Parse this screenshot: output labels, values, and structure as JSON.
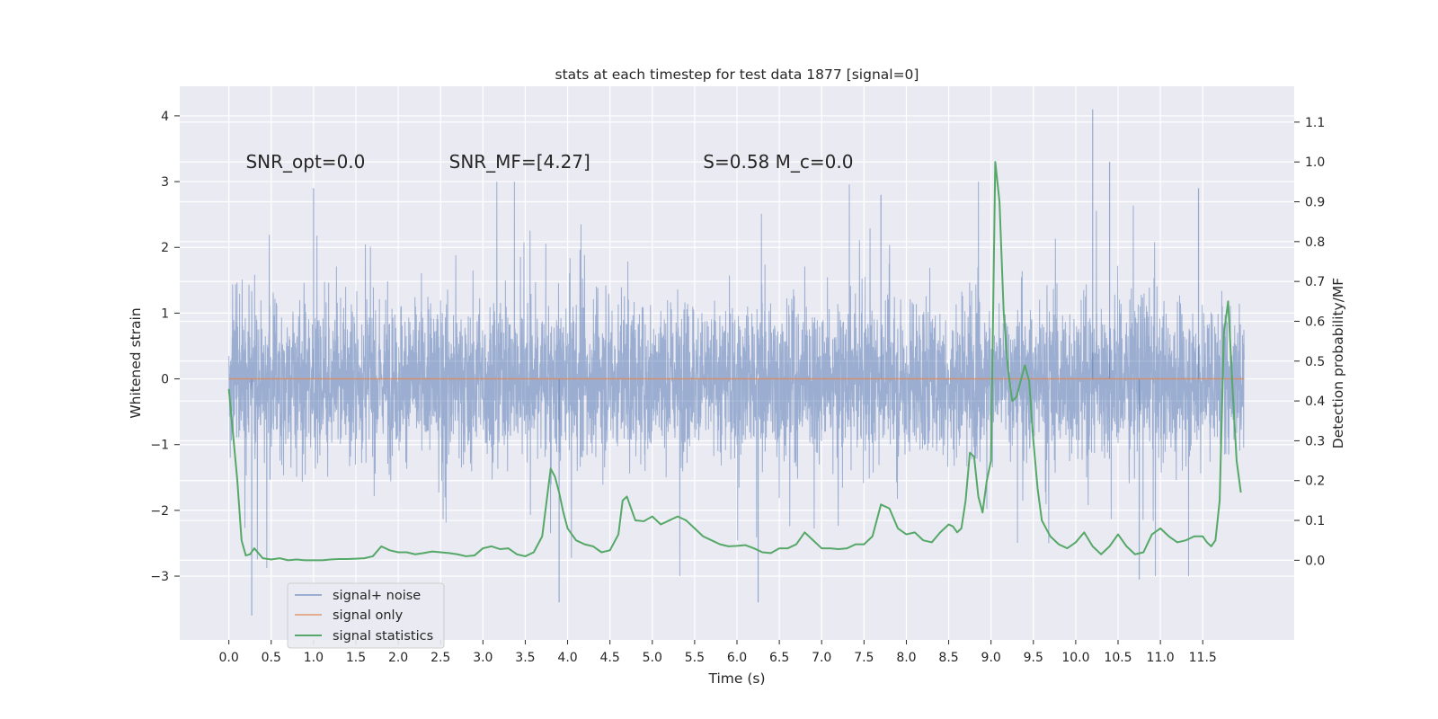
{
  "chart_data": {
    "type": "line",
    "title": "stats at each timestep for test data 1877 [signal=0]",
    "xlabel": "Time (s)",
    "ylabel": "Whitened strain",
    "y2label": "Detection probability/MF",
    "xlim": [
      -0.58,
      12.58
    ],
    "ylim": [
      -3.97,
      4.45
    ],
    "y2lim": [
      -0.2,
      1.19
    ],
    "xticks": [
      0.0,
      0.5,
      1.0,
      1.5,
      2.0,
      2.5,
      3.0,
      3.5,
      4.0,
      4.5,
      5.0,
      5.5,
      6.0,
      6.5,
      7.0,
      7.5,
      8.0,
      8.5,
      9.0,
      9.5,
      10.0,
      10.5,
      11.0,
      11.5
    ],
    "xtick_labels": [
      "0.0",
      "0.5",
      "1.0",
      "1.5",
      "2.0",
      "2.5",
      "3.0",
      "3.5",
      "4.0",
      "4.5",
      "5.0",
      "5.5",
      "6.0",
      "6.5",
      "7.0",
      "7.5",
      "8.0",
      "8.5",
      "9.0",
      "9.5",
      "10.0",
      "10.5",
      "11.0",
      "11.5"
    ],
    "yticks": [
      -3,
      -2,
      -1,
      0,
      1,
      2,
      3,
      4
    ],
    "ytick_labels": [
      "−3",
      "−2",
      "−1",
      "0",
      "1",
      "2",
      "3",
      "4"
    ],
    "y2ticks": [
      0.0,
      0.1,
      0.2,
      0.3,
      0.4,
      0.5,
      0.6,
      0.7,
      0.8,
      0.9,
      1.0,
      1.1
    ],
    "y2tick_labels": [
      "0.0",
      "0.1",
      "0.2",
      "0.3",
      "0.4",
      "0.5",
      "0.6",
      "0.7",
      "0.8",
      "0.9",
      "1.0",
      "1.1"
    ],
    "grid": true,
    "legend_position": "lower-left",
    "annotations": [
      {
        "text": "SNR_opt=0.0",
        "x": 0.2,
        "y": 3.3
      },
      {
        "text": "SNR_MF=[4.27]",
        "x": 2.6,
        "y": 3.3
      },
      {
        "text": "S=0.58   M_c=0.0",
        "x": 5.6,
        "y": 3.3
      }
    ],
    "series": [
      {
        "name": "signal+ noise",
        "color": "#4c72b0",
        "axis": "left",
        "style": "dense noise trace, approx ±1.5 band, peaks to ±3",
        "notable_points": [
          [
            0.27,
            -3.6
          ],
          [
            1.0,
            2.9
          ],
          [
            3.9,
            -3.4
          ],
          [
            6.25,
            -3.4
          ],
          [
            10.2,
            4.1
          ],
          [
            10.4,
            3.3
          ],
          [
            10.75,
            -3.05
          ],
          [
            7.7,
            2.8
          ],
          [
            11.45,
            2.9
          ]
        ]
      },
      {
        "name": "signal only",
        "color": "#dd8452",
        "axis": "left",
        "x": [
          0.0,
          11.99
        ],
        "values": [
          0.0,
          0.0
        ]
      },
      {
        "name": "signal statistics",
        "color": "#55a868",
        "axis": "right",
        "x": [
          0.0,
          0.1,
          0.15,
          0.2,
          0.25,
          0.3,
          0.4,
          0.5,
          0.6,
          0.7,
          0.8,
          0.9,
          1.0,
          1.1,
          1.2,
          1.3,
          1.4,
          1.5,
          1.6,
          1.7,
          1.8,
          1.9,
          2.0,
          2.1,
          2.2,
          2.3,
          2.4,
          2.5,
          2.6,
          2.7,
          2.8,
          2.9,
          3.0,
          3.1,
          3.2,
          3.3,
          3.4,
          3.5,
          3.6,
          3.7,
          3.8,
          3.85,
          3.9,
          3.95,
          4.0,
          4.1,
          4.2,
          4.3,
          4.4,
          4.5,
          4.6,
          4.65,
          4.7,
          4.8,
          4.9,
          5.0,
          5.1,
          5.2,
          5.3,
          5.4,
          5.5,
          5.6,
          5.7,
          5.8,
          5.9,
          6.0,
          6.1,
          6.2,
          6.3,
          6.4,
          6.5,
          6.6,
          6.7,
          6.8,
          6.9,
          7.0,
          7.1,
          7.2,
          7.3,
          7.4,
          7.5,
          7.6,
          7.7,
          7.8,
          7.9,
          8.0,
          8.1,
          8.2,
          8.3,
          8.4,
          8.5,
          8.55,
          8.6,
          8.65,
          8.7,
          8.75,
          8.8,
          8.85,
          8.9,
          8.95,
          9.0,
          9.05,
          9.1,
          9.15,
          9.2,
          9.25,
          9.3,
          9.35,
          9.4,
          9.45,
          9.5,
          9.55,
          9.6,
          9.7,
          9.8,
          9.9,
          10.0,
          10.1,
          10.2,
          10.3,
          10.4,
          10.5,
          10.6,
          10.7,
          10.8,
          10.9,
          11.0,
          11.1,
          11.2,
          11.3,
          11.4,
          11.5,
          11.55,
          11.6,
          11.65,
          11.7,
          11.75,
          11.8,
          11.85,
          11.9,
          11.95
        ],
        "values": [
          0.43,
          0.2,
          0.05,
          0.012,
          0.015,
          0.03,
          0.005,
          0.002,
          0.005,
          0.0,
          0.002,
          0.0,
          0.0,
          0.0,
          0.002,
          0.003,
          0.003,
          0.004,
          0.005,
          0.01,
          0.035,
          0.025,
          0.02,
          0.02,
          0.015,
          0.018,
          0.022,
          0.02,
          0.018,
          0.015,
          0.01,
          0.012,
          0.03,
          0.035,
          0.028,
          0.03,
          0.015,
          0.01,
          0.02,
          0.06,
          0.23,
          0.21,
          0.17,
          0.12,
          0.08,
          0.05,
          0.04,
          0.035,
          0.02,
          0.025,
          0.065,
          0.15,
          0.16,
          0.1,
          0.098,
          0.11,
          0.09,
          0.1,
          0.11,
          0.1,
          0.08,
          0.06,
          0.05,
          0.04,
          0.035,
          0.036,
          0.038,
          0.03,
          0.02,
          0.018,
          0.03,
          0.03,
          0.04,
          0.07,
          0.05,
          0.03,
          0.03,
          0.028,
          0.03,
          0.04,
          0.04,
          0.06,
          0.14,
          0.13,
          0.08,
          0.065,
          0.07,
          0.05,
          0.045,
          0.07,
          0.09,
          0.085,
          0.07,
          0.08,
          0.15,
          0.27,
          0.26,
          0.16,
          0.12,
          0.2,
          0.25,
          1.0,
          0.9,
          0.62,
          0.48,
          0.4,
          0.41,
          0.45,
          0.49,
          0.45,
          0.3,
          0.18,
          0.1,
          0.06,
          0.04,
          0.03,
          0.045,
          0.07,
          0.035,
          0.015,
          0.035,
          0.065,
          0.035,
          0.015,
          0.02,
          0.065,
          0.08,
          0.06,
          0.045,
          0.05,
          0.06,
          0.06,
          0.045,
          0.035,
          0.05,
          0.15,
          0.57,
          0.65,
          0.44,
          0.25,
          0.17
        ]
      }
    ]
  }
}
